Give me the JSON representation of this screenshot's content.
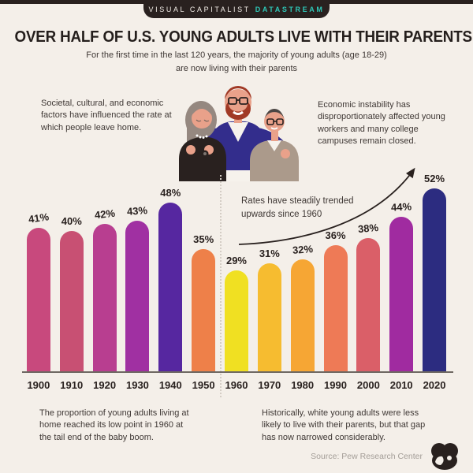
{
  "banner": {
    "brand": "VISUAL CAPITALIST",
    "product": "DATASTREAM",
    "product_color": "#2ec5b6",
    "bar_color": "#29211f"
  },
  "header": {
    "title": "OVER HALF OF U.S. YOUNG ADULTS LIVE WITH THEIR PARENTS",
    "subtitle_line1": "For the first time in the last 120 years, the majority of young adults (age 18-29)",
    "subtitle_line2": "are now living with their parents"
  },
  "annotations": {
    "left_top": "Societal, cultural, and economic factors have influenced the rate at which people leave home.",
    "right_top": "Economic instability has disproportionately affected young workers and many college campuses remain closed.",
    "trend": "Rates have steadily trended upwards since 1960",
    "bottom_left": "The proportion of young adults living at home reached its low point in 1960 at the tail end of the baby boom.",
    "bottom_right": "Historically, white young adults were less likely to live with their parents, but that gap has now narrowed considerably."
  },
  "footer": {
    "source": "Source: Pew Research Center",
    "logo_icon": "visual-capitalist-logo"
  },
  "colors": {
    "background": "#f4efe9",
    "ink": "#29211f",
    "body_text": "#3f3835",
    "source_text": "#a39d97"
  },
  "chart_data": {
    "type": "bar",
    "title": "Share of U.S. young adults (age 18-29) living with their parents",
    "categories": [
      "1900",
      "1910",
      "1920",
      "1930",
      "1940",
      "1950",
      "1960",
      "1970",
      "1980",
      "1990",
      "2000",
      "2010",
      "2020"
    ],
    "values": [
      41,
      40,
      42,
      43,
      48,
      35,
      29,
      31,
      32,
      36,
      38,
      44,
      52
    ],
    "labels": [
      "41%",
      "40%",
      "42%",
      "43%",
      "48%",
      "35%",
      "29%",
      "31%",
      "32%",
      "36%",
      "38%",
      "44%",
      "52%"
    ],
    "colors": [
      "#c8497d",
      "#c85073",
      "#b83e90",
      "#a030a2",
      "#5627a0",
      "#ee8049",
      "#f0e022",
      "#f6bc30",
      "#f6a634",
      "#ee7a56",
      "#da5f68",
      "#a02ba0",
      "#2c2c80"
    ],
    "unit": "%",
    "ylim": [
      0,
      55
    ],
    "grid": false,
    "legend": "none",
    "divider_after_category": "1950"
  }
}
